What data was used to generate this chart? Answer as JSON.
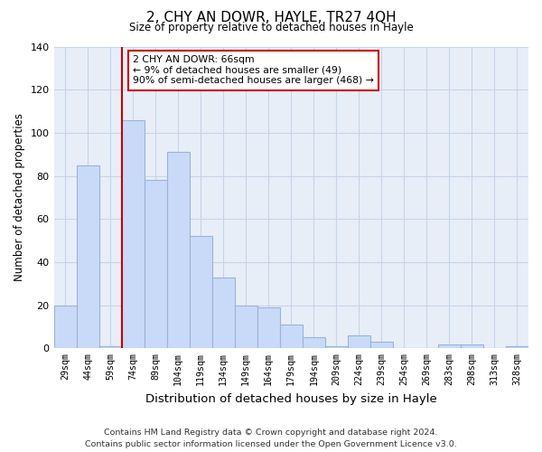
{
  "title": "2, CHY AN DOWR, HAYLE, TR27 4QH",
  "subtitle": "Size of property relative to detached houses in Hayle",
  "xlabel": "Distribution of detached houses by size in Hayle",
  "ylabel": "Number of detached properties",
  "bar_labels": [
    "29sqm",
    "44sqm",
    "59sqm",
    "74sqm",
    "89sqm",
    "104sqm",
    "119sqm",
    "134sqm",
    "149sqm",
    "164sqm",
    "179sqm",
    "194sqm",
    "209sqm",
    "224sqm",
    "239sqm",
    "254sqm",
    "269sqm",
    "283sqm",
    "298sqm",
    "313sqm",
    "328sqm"
  ],
  "bar_values": [
    20,
    85,
    1,
    106,
    78,
    91,
    52,
    33,
    20,
    19,
    11,
    5,
    1,
    6,
    3,
    0,
    0,
    2,
    2,
    0,
    1
  ],
  "bar_color": "#c9daf8",
  "bar_edge_color": "#9ab3d5",
  "vline_color": "#cc0000",
  "annotation_text": "2 CHY AN DOWR: 66sqm\n← 9% of detached houses are smaller (49)\n90% of semi-detached houses are larger (468) →",
  "annotation_box_color": "#ffffff",
  "annotation_box_edge": "#cc0000",
  "ylim": [
    0,
    140
  ],
  "yticks": [
    0,
    20,
    40,
    60,
    80,
    100,
    120,
    140
  ],
  "footer": "Contains HM Land Registry data © Crown copyright and database right 2024.\nContains public sector information licensed under the Open Government Licence v3.0.",
  "background_color": "#ffffff",
  "grid_color": "#c5d5e8"
}
